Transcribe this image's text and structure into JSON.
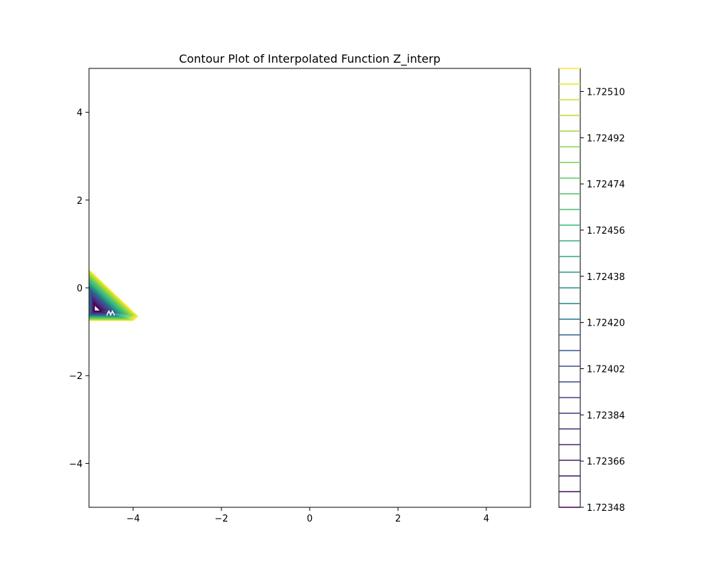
{
  "chart_data": {
    "type": "contour",
    "title": "Contour Plot of Interpolated Function Z_interp",
    "xlabel": "",
    "ylabel": "",
    "xlim": [
      -5,
      5
    ],
    "ylim": [
      -5,
      5
    ],
    "xticks": [
      -4,
      -2,
      0,
      2,
      4
    ],
    "yticks": [
      -4,
      -2,
      0,
      2,
      4
    ],
    "xtick_labels": [
      "−4",
      "−2",
      "0",
      "2",
      "4"
    ],
    "ytick_labels": [
      "−4",
      "−2",
      "0",
      "2",
      "4"
    ],
    "grid": false,
    "colormap": "viridis",
    "level_range": [
      1.72348,
      1.72519
    ],
    "level_count": 29,
    "colorbar": {
      "ticks": [
        1.72348,
        1.72366,
        1.72384,
        1.72402,
        1.7242,
        1.72438,
        1.72456,
        1.72474,
        1.72492,
        1.7251
      ],
      "tick_labels": [
        "1.72348",
        "1.72366",
        "1.72384",
        "1.72402",
        "1.72420",
        "1.72438",
        "1.72456",
        "1.72474",
        "1.72492",
        "1.72510"
      ]
    },
    "contour_region": {
      "description_vertices": [
        [
          -5,
          0.45
        ],
        [
          -3.9,
          -0.65
        ],
        [
          -4.0,
          -0.75
        ],
        [
          -5,
          -0.75
        ]
      ]
    }
  }
}
